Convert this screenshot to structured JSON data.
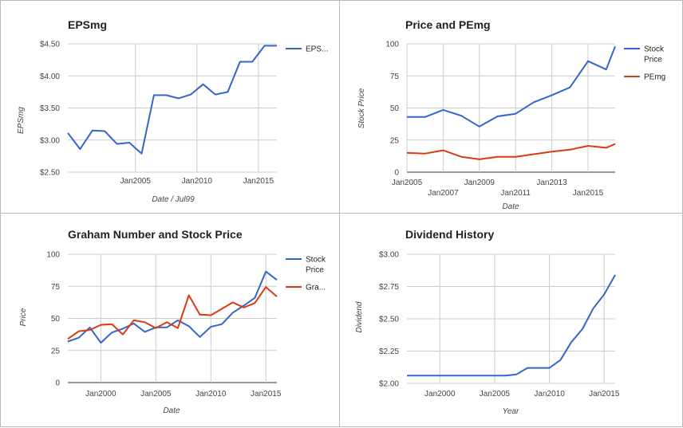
{
  "colors": {
    "blue": "#3366cc",
    "red": "#dc3912",
    "grid": "#cccccc"
  },
  "chart_data": [
    {
      "type": "line",
      "title": "EPSmg",
      "xlabel": "Date / Jul99",
      "ylabel": "EPSmg",
      "x_ticks": [
        "Jan2005",
        "Jan2010",
        "Jan2015"
      ],
      "y_ticks": [
        "$4.50",
        "$4.00",
        "$3.50",
        "$3.00",
        "$2.50"
      ],
      "ylim": [
        2.5,
        4.5
      ],
      "xlim": [
        1999.5,
        2016.5
      ],
      "grid": true,
      "legend_position": "right",
      "series": [
        {
          "name": "EPS...",
          "color": "#3366cc",
          "x": [
            1999.5,
            2000.5,
            2001.5,
            2002.5,
            2003.5,
            2004.5,
            2005.5,
            2006.5,
            2007.5,
            2008.5,
            2009.5,
            2010.5,
            2011.5,
            2012.5,
            2013.5,
            2014.5,
            2015.5,
            2016.5
          ],
          "y": [
            3.11,
            2.86,
            3.15,
            3.14,
            2.94,
            2.96,
            2.79,
            3.7,
            3.7,
            3.65,
            3.71,
            3.87,
            3.71,
            3.75,
            4.22,
            4.22,
            4.47,
            4.47
          ]
        }
      ]
    },
    {
      "type": "line",
      "title": "Price and PEmg",
      "xlabel": "Date",
      "ylabel": "Stock Price",
      "x_ticks": [
        "Jan2005",
        "Jan2007",
        "Jan2009",
        "Jan2011",
        "Jan2013",
        "Jan2015"
      ],
      "y_ticks": [
        "100",
        "75",
        "50",
        "25",
        "0"
      ],
      "ylim": [
        0,
        100
      ],
      "xlim": [
        2005,
        2016.5
      ],
      "grid": true,
      "legend_position": "right",
      "series": [
        {
          "name": "Stock Price",
          "color": "#3366cc",
          "x": [
            2005,
            2006,
            2007,
            2008,
            2009,
            2010,
            2011,
            2012,
            2013,
            2014,
            2015,
            2016,
            2016.5
          ],
          "y": [
            43,
            43,
            48.5,
            44,
            35.5,
            43.5,
            45.5,
            54.5,
            60,
            66,
            86.5,
            80,
            98
          ]
        },
        {
          "name": "PEmg",
          "color": "#dc3912",
          "x": [
            2005,
            2006,
            2007,
            2008,
            2009,
            2010,
            2011,
            2012,
            2013,
            2014,
            2015,
            2016,
            2016.5
          ],
          "y": [
            15,
            14.5,
            17,
            12,
            10,
            12,
            12,
            14,
            16,
            17.5,
            20.5,
            19,
            22
          ]
        }
      ]
    },
    {
      "type": "line",
      "title": "Graham Number and Stock Price",
      "xlabel": "Date",
      "ylabel": "Price",
      "x_ticks": [
        "Jan2000",
        "Jan2005",
        "Jan2010",
        "Jan2015"
      ],
      "y_ticks": [
        "100",
        "75",
        "50",
        "25",
        "0"
      ],
      "ylim": [
        0,
        100
      ],
      "xlim": [
        1997,
        2016
      ],
      "grid": true,
      "legend_position": "right",
      "series": [
        {
          "name": "Stock Price",
          "color": "#3366cc",
          "x": [
            1997,
            1998,
            1999,
            2000,
            2001,
            2002,
            2003,
            2004,
            2005,
            2006,
            2007,
            2008,
            2009,
            2010,
            2011,
            2012,
            2013,
            2014,
            2015,
            2016
          ],
          "y": [
            32,
            35,
            43,
            31,
            39,
            42,
            46,
            39.5,
            43,
            43,
            48.5,
            44,
            35.5,
            43.5,
            45.5,
            54.5,
            60,
            66,
            86.5,
            80
          ]
        },
        {
          "name": "Gra...",
          "color": "#dc3912",
          "x": [
            1997,
            1998,
            1999,
            2000,
            2001,
            2002,
            2003,
            2004,
            2005,
            2006,
            2007,
            2008,
            2009,
            2010,
            2011,
            2012,
            2013,
            2014,
            2015,
            2016
          ],
          "y": [
            34,
            40,
            41,
            45,
            45.5,
            37.5,
            48.5,
            47,
            42.5,
            47,
            42.5,
            68,
            53,
            52.5,
            57.5,
            62.5,
            58.5,
            62,
            74.5,
            67
          ]
        }
      ]
    },
    {
      "type": "line",
      "title": "Dividend History",
      "xlabel": "Year",
      "ylabel": "Dividend",
      "x_ticks": [
        "Jan2000",
        "Jan2005",
        "Jan2010",
        "Jan2015"
      ],
      "y_ticks": [
        "$3.00",
        "$2.75",
        "$2.50",
        "$2.25",
        "$2.00"
      ],
      "ylim": [
        2.0,
        3.0
      ],
      "xlim": [
        1997,
        2016
      ],
      "grid": true,
      "legend_position": "none",
      "series": [
        {
          "name": "",
          "color": "#3366cc",
          "x": [
            1997,
            2006,
            2007,
            2008,
            2009,
            2010,
            2011,
            2012,
            2013,
            2014,
            2015,
            2016
          ],
          "y": [
            2.06,
            2.06,
            2.07,
            2.12,
            2.12,
            2.12,
            2.18,
            2.32,
            2.42,
            2.58,
            2.69,
            2.84
          ]
        }
      ]
    }
  ]
}
